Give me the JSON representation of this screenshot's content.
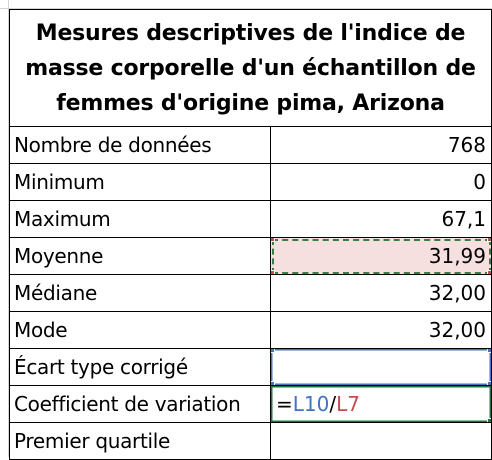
{
  "title": "Mesures descriptives de l'indice de masse corporelle d'un échantillon de femmes d'origine pima, Arizona",
  "rows": [
    {
      "label": "Nombre de données",
      "value": "768"
    },
    {
      "label": "Minimum",
      "value": "0"
    },
    {
      "label": "Maximum",
      "value": "67,1"
    },
    {
      "label": "Moyenne",
      "value": "31,99"
    },
    {
      "label": "Médiane",
      "value": "32,00"
    },
    {
      "label": "Mode",
      "value": "32,00"
    },
    {
      "label": "Écart type corrigé",
      "value": ""
    },
    {
      "label": "Coefficient de variation",
      "value": ""
    },
    {
      "label": "Premier quartile",
      "value": ""
    }
  ],
  "formula": {
    "eq": "=",
    "ref1": "L10",
    "op": "/",
    "ref2": "L7"
  },
  "colors": {
    "highlight_fill": "#f6dfdf",
    "highlight_border": "#3a7d44",
    "ref1_color": "#4472c4",
    "ref2_color": "#c0504d",
    "active_cell_border": "#217346"
  }
}
